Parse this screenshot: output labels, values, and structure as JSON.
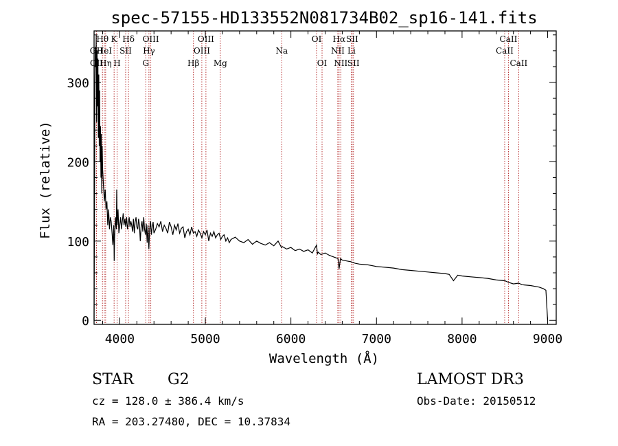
{
  "colors": {
    "spectrum": "#000000",
    "line_marker": "#b22222",
    "axis": "#000000"
  },
  "chart_data": {
    "type": "line",
    "title": "spec-57155-HD133552N081734B02_sp16-141.fits",
    "xlabel": "Wavelength (Å)",
    "ylabel": "Flux (relative)",
    "xlim": [
      3700,
      9100
    ],
    "ylim": [
      -5,
      365
    ],
    "x_ticks": [
      4000,
      5000,
      6000,
      7000,
      8000,
      9000
    ],
    "x_tick_labels": [
      "4000",
      "5000",
      "6000",
      "7000",
      "8000",
      "9000"
    ],
    "y_ticks": [
      0,
      100,
      200,
      300
    ],
    "y_tick_labels": [
      "0",
      "100",
      "200",
      "300"
    ],
    "series": [
      {
        "name": "flux",
        "x": [
          3700,
          3705,
          3710,
          3715,
          3720,
          3725,
          3730,
          3735,
          3740,
          3745,
          3750,
          3755,
          3760,
          3765,
          3770,
          3775,
          3780,
          3785,
          3790,
          3795,
          3800,
          3810,
          3820,
          3830,
          3840,
          3850,
          3860,
          3870,
          3880,
          3890,
          3900,
          3910,
          3920,
          3930,
          3935,
          3940,
          3950,
          3960,
          3965,
          3970,
          3980,
          3990,
          4000,
          4010,
          4020,
          4030,
          4040,
          4050,
          4060,
          4070,
          4080,
          4090,
          4100,
          4110,
          4120,
          4130,
          4140,
          4150,
          4160,
          4170,
          4180,
          4190,
          4200,
          4210,
          4220,
          4230,
          4240,
          4250,
          4260,
          4270,
          4280,
          4290,
          4300,
          4310,
          4320,
          4330,
          4340,
          4350,
          4360,
          4370,
          4380,
          4390,
          4400,
          4420,
          4440,
          4460,
          4480,
          4500,
          4520,
          4540,
          4560,
          4580,
          4600,
          4620,
          4640,
          4660,
          4680,
          4700,
          4720,
          4740,
          4760,
          4780,
          4800,
          4820,
          4840,
          4860,
          4880,
          4900,
          4920,
          4940,
          4960,
          4980,
          5000,
          5020,
          5040,
          5060,
          5080,
          5100,
          5120,
          5140,
          5160,
          5180,
          5200,
          5220,
          5240,
          5260,
          5280,
          5300,
          5350,
          5400,
          5450,
          5500,
          5550,
          5600,
          5650,
          5700,
          5750,
          5800,
          5850,
          5890,
          5900,
          5950,
          6000,
          6050,
          6100,
          6150,
          6200,
          6250,
          6300,
          6310,
          6320,
          6350,
          6400,
          6450,
          6500,
          6550,
          6563,
          6580,
          6600,
          6650,
          6700,
          6750,
          6800,
          6900,
          7000,
          7100,
          7200,
          7300,
          7400,
          7500,
          7600,
          7700,
          7800,
          7850,
          7900,
          7950,
          8000,
          8100,
          8200,
          8300,
          8400,
          8500,
          8542,
          8600,
          8662,
          8700,
          8800,
          8900,
          8950,
          8980,
          9000
        ],
        "values": [
          0,
          140,
          300,
          345,
          320,
          360,
          250,
          340,
          270,
          330,
          230,
          310,
          220,
          290,
          200,
          245,
          180,
          235,
          160,
          220,
          190,
          170,
          150,
          165,
          140,
          150,
          120,
          140,
          115,
          130,
          125,
          110,
          95,
          120,
          75,
          105,
          130,
          115,
          165,
          120,
          140,
          110,
          120,
          130,
          115,
          125,
          135,
          120,
          128,
          118,
          130,
          115,
          122,
          130,
          118,
          125,
          120,
          112,
          128,
          110,
          124,
          130,
          118,
          115,
          128,
          120,
          100,
          118,
          125,
          112,
          130,
          115,
          108,
          122,
          98,
          120,
          90,
          115,
          125,
          108,
          118,
          124,
          110,
          115,
          122,
          118,
          125,
          112,
          120,
          116,
          110,
          124,
          118,
          108,
          120,
          114,
          122,
          110,
          116,
          118,
          104,
          112,
          115,
          108,
          118,
          110,
          112,
          106,
          114,
          110,
          104,
          112,
          108,
          114,
          100,
          110,
          106,
          112,
          104,
          108,
          110,
          102,
          106,
          108,
          100,
          104,
          98,
          102,
          105,
          100,
          98,
          102,
          96,
          100,
          97,
          95,
          98,
          94,
          100,
          92,
          93,
          90,
          92,
          88,
          90,
          87,
          89,
          85,
          95,
          84,
          86,
          83,
          85,
          82,
          80,
          78,
          65,
          78,
          76,
          75,
          74,
          72,
          71,
          70,
          68,
          67,
          66,
          64,
          63,
          62,
          61,
          60,
          59,
          58,
          50,
          57,
          56,
          55,
          54,
          53,
          51,
          50,
          48,
          46,
          47,
          45,
          44,
          42,
          40,
          38,
          0
        ]
      }
    ],
    "line_markers": [
      {
        "label": "Hθ",
        "wavelength": 3798,
        "row": 1
      },
      {
        "label": "OII",
        "wavelength": 3727,
        "row": 2
      },
      {
        "label": "HeI",
        "wavelength": 3820,
        "row": 2
      },
      {
        "label": "OII",
        "wavelength": 3729,
        "row": 3
      },
      {
        "label": "Hη",
        "wavelength": 3835,
        "row": 3
      },
      {
        "label": "K",
        "wavelength": 3934,
        "row": 1
      },
      {
        "label": "SII",
        "wavelength": 4069,
        "row": 2
      },
      {
        "label": "H",
        "wavelength": 3969,
        "row": 3
      },
      {
        "label": "Hδ",
        "wavelength": 4102,
        "row": 1
      },
      {
        "label": "OIII",
        "wavelength": 4363,
        "row": 1
      },
      {
        "label": "Hγ",
        "wavelength": 4341,
        "row": 2
      },
      {
        "label": "G",
        "wavelength": 4304,
        "row": 3
      },
      {
        "label": "OIII",
        "wavelength": 5007,
        "row": 1
      },
      {
        "label": "OIII",
        "wavelength": 4959,
        "row": 2
      },
      {
        "label": "Hβ",
        "wavelength": 4861,
        "row": 3
      },
      {
        "label": "Mg",
        "wavelength": 5175,
        "row": 3
      },
      {
        "label": "Na",
        "wavelength": 5893,
        "row": 2
      },
      {
        "label": "OI",
        "wavelength": 6300,
        "row": 1
      },
      {
        "label": "OI",
        "wavelength": 6364,
        "row": 3
      },
      {
        "label": "Hα",
        "wavelength": 6563,
        "row": 1
      },
      {
        "label": "SII",
        "wavelength": 6716,
        "row": 1
      },
      {
        "label": "NII",
        "wavelength": 6548,
        "row": 2
      },
      {
        "label": "Li",
        "wavelength": 6708,
        "row": 2
      },
      {
        "label": "NII",
        "wavelength": 6583,
        "row": 3
      },
      {
        "label": "SII",
        "wavelength": 6731,
        "row": 3
      },
      {
        "label": "CaII",
        "wavelength": 8542,
        "row": 1
      },
      {
        "label": "CaII",
        "wavelength": 8498,
        "row": 2
      },
      {
        "label": "CaII",
        "wavelength": 8662,
        "row": 3
      }
    ]
  },
  "info": {
    "class": "STAR",
    "subclass": "G2",
    "survey": "LAMOST DR3",
    "cz": "cz = 128.0 ± 386.4 km/s",
    "obs_date": "Obs-Date: 20150512",
    "radec": "RA = 203.27480, DEC =  10.37834"
  }
}
